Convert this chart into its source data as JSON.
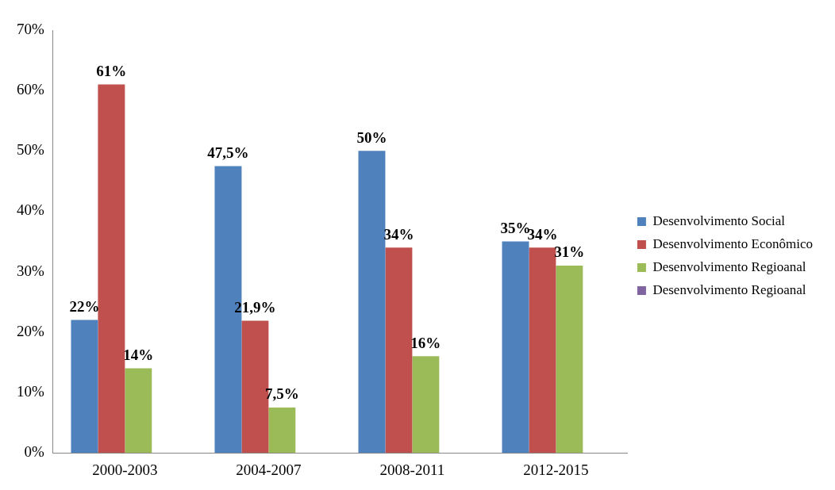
{
  "chart_data": {
    "type": "bar",
    "categories": [
      "2000-2003",
      "2004-2007",
      "2008-2011",
      "2012-2015"
    ],
    "series": [
      {
        "name": "Desenvolvimento Social",
        "color": "#4f81bd",
        "values": [
          22,
          47.5,
          50,
          35
        ],
        "value_labels": [
          "22%",
          "47,5%",
          "50%",
          "35%"
        ]
      },
      {
        "name": "Desenvolvimento Econômico",
        "color": "#c0504d",
        "values": [
          61,
          21.9,
          34,
          34
        ],
        "value_labels": [
          "61%",
          "21,9%",
          "34%",
          "34%"
        ]
      },
      {
        "name": "Desenvolvimento Regioanal",
        "color": "#9bbb59",
        "values": [
          14,
          7.5,
          16,
          31
        ],
        "value_labels": [
          "14%",
          "7,5%",
          "16%",
          "31%"
        ]
      },
      {
        "name": "Desenvolvimento Regioanal",
        "color": "#8064a2",
        "values": [
          null,
          null,
          null,
          null
        ]
      }
    ],
    "ylim": [
      0,
      70
    ],
    "yticks": [
      {
        "value": 0,
        "label": "0%"
      },
      {
        "value": 10,
        "label": "10%"
      },
      {
        "value": 20,
        "label": "20%"
      },
      {
        "value": 30,
        "label": "30%"
      },
      {
        "value": 40,
        "label": "40%"
      },
      {
        "value": 50,
        "label": "50%"
      },
      {
        "value": 60,
        "label": "60%"
      },
      {
        "value": 70,
        "label": "70%"
      }
    ],
    "grid": false,
    "legend": "right"
  }
}
